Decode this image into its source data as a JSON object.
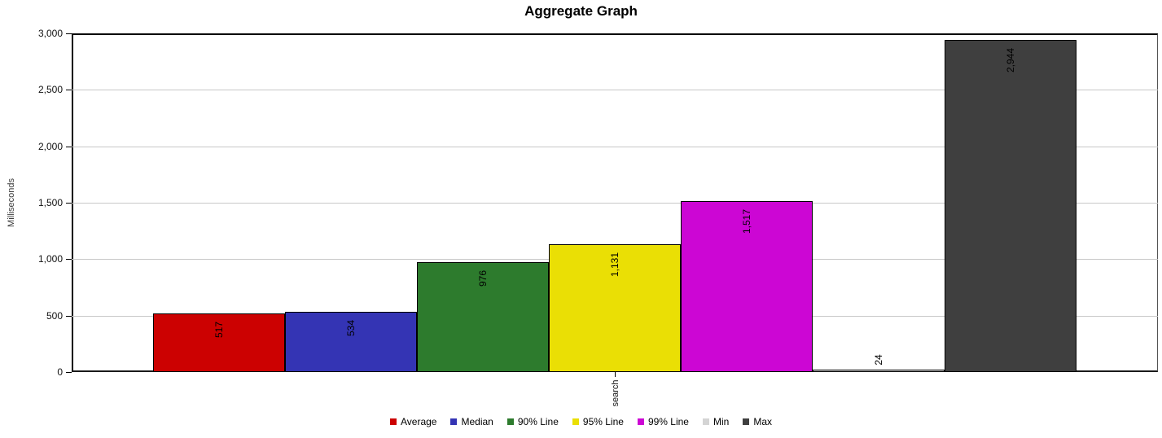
{
  "chart_data": {
    "type": "bar",
    "title": "Aggregate Graph",
    "ylabel": "Milliseconds",
    "categories": [
      "search"
    ],
    "series": [
      {
        "name": "Average",
        "value": 517,
        "display": "517",
        "color": "#cc0101"
      },
      {
        "name": "Median",
        "value": 534,
        "display": "534",
        "color": "#3434b4"
      },
      {
        "name": "90% Line",
        "value": 976,
        "display": "976",
        "color": "#2d7b2d"
      },
      {
        "name": "95% Line",
        "value": 1131,
        "display": "1,131",
        "color": "#eadf05"
      },
      {
        "name": "99% Line",
        "value": 1517,
        "display": "1,517",
        "color": "#cc06d4"
      },
      {
        "name": "Min",
        "value": 24,
        "display": "24",
        "color": "#d4d4d4"
      },
      {
        "name": "Max",
        "value": 2944,
        "display": "2,944",
        "color": "#3f3f3f"
      }
    ],
    "ylim": [
      0,
      3000
    ],
    "yticks": [
      {
        "value": 0,
        "label": "0"
      },
      {
        "value": 500,
        "label": "500"
      },
      {
        "value": 1000,
        "label": "1,000"
      },
      {
        "value": 1500,
        "label": "1,500"
      },
      {
        "value": 2000,
        "label": "2,000"
      },
      {
        "value": 2500,
        "label": "2,500"
      },
      {
        "value": 3000,
        "label": "3,000"
      }
    ],
    "grid": true,
    "legend_position": "bottom"
  }
}
